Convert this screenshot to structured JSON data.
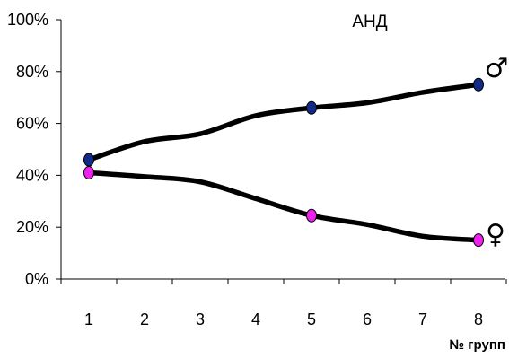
{
  "chart_data": {
    "type": "line",
    "title": "АНД",
    "xlabel": "№ групп",
    "ylabel": "",
    "categories": [
      1,
      2,
      3,
      4,
      5,
      6,
      7,
      8
    ],
    "ylim": [
      0,
      100
    ],
    "yticks": [
      0,
      20,
      40,
      60,
      80,
      100
    ],
    "ytick_labels": [
      "0%",
      "20%",
      "40%",
      "60%",
      "80%",
      "100%"
    ],
    "xtick_labels": [
      "1",
      "2",
      "3",
      "4",
      "5",
      "6",
      "7",
      "8"
    ],
    "grid": false,
    "series": [
      {
        "name": "♂",
        "values": [
          46,
          53,
          56,
          63,
          66,
          68,
          72,
          75
        ],
        "markers_at": [
          1,
          5,
          8
        ],
        "line_color": "#000000",
        "marker_color": "#102a86"
      },
      {
        "name": "♀",
        "values": [
          41,
          39.5,
          37.5,
          31,
          24.5,
          21,
          16.5,
          15
        ],
        "markers_at": [
          1,
          5,
          8
        ],
        "line_color": "#000000",
        "marker_color": "#ee22ee"
      }
    ]
  }
}
